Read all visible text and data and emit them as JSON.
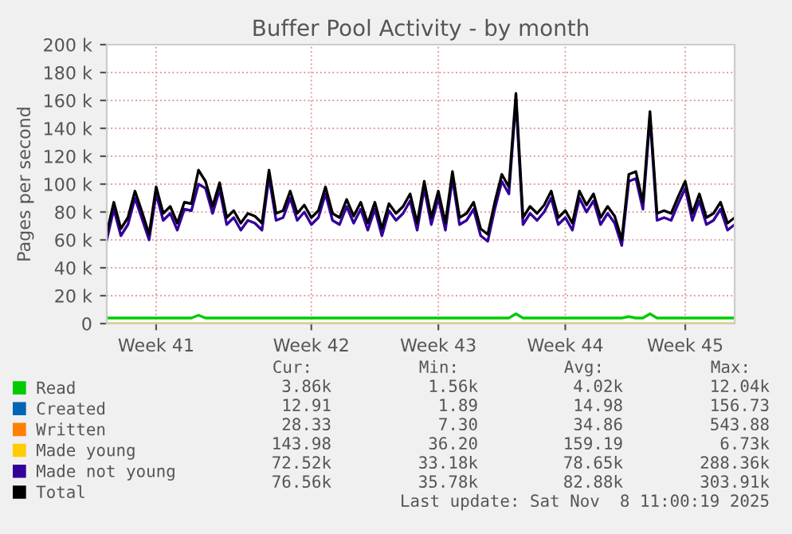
{
  "chart_data": {
    "type": "line",
    "title": "Buffer Pool Activity - by month",
    "ylabel": "Pages per second",
    "categories": [
      null,
      null,
      null,
      null,
      null,
      null,
      null,
      "Week 41",
      null,
      null,
      null,
      null,
      null,
      null,
      null,
      null,
      null,
      null,
      null,
      null,
      null,
      null,
      null,
      null,
      null,
      null,
      null,
      null,
      null,
      "Week 42",
      null,
      null,
      null,
      null,
      null,
      null,
      null,
      null,
      null,
      null,
      null,
      null,
      null,
      null,
      null,
      null,
      null,
      "Week 43",
      null,
      null,
      null,
      null,
      null,
      null,
      null,
      null,
      null,
      null,
      null,
      null,
      null,
      null,
      null,
      null,
      null,
      "Week 44",
      null,
      null,
      null,
      null,
      null,
      null,
      null,
      null,
      null,
      null,
      null,
      null,
      null,
      null,
      null,
      null,
      "Week 45",
      null,
      null,
      null,
      null,
      null,
      null,
      null
    ],
    "ylim": [
      0,
      200000
    ],
    "yticks": [
      0,
      {
        "value": 20000,
        "label": "20 k"
      },
      {
        "value": 40000,
        "label": "40 k"
      },
      {
        "value": 60000,
        "label": "60 k"
      },
      {
        "value": 80000,
        "label": "80 k"
      },
      {
        "value": 100000,
        "label": "100 k"
      },
      {
        "value": 120000,
        "label": "120 k"
      },
      {
        "value": 140000,
        "label": "140 k"
      },
      {
        "value": 160000,
        "label": "160 k"
      },
      {
        "value": 180000,
        "label": "180 k"
      },
      {
        "value": 200000,
        "label": "200 k"
      }
    ],
    "grid": true,
    "legend": "bottom",
    "series": [
      {
        "name": "Read",
        "color": "#00cc00",
        "values": [
          4000,
          4000,
          4000,
          4000,
          4000,
          4000,
          4000,
          4000,
          4000,
          4000,
          4000,
          4000,
          4000,
          6000,
          4000,
          4000,
          4000,
          4000,
          4000,
          4000,
          4000,
          4000,
          4000,
          4000,
          4000,
          4000,
          4000,
          4000,
          4000,
          4000,
          4000,
          4000,
          4000,
          4000,
          4000,
          4000,
          4000,
          4000,
          4000,
          4000,
          4000,
          4000,
          4000,
          4000,
          4000,
          4000,
          4000,
          4000,
          4000,
          4000,
          4000,
          4000,
          4000,
          4000,
          4000,
          4000,
          4000,
          4000,
          7000,
          4000,
          4000,
          4000,
          4000,
          4000,
          4000,
          4000,
          4000,
          4000,
          4000,
          4000,
          4000,
          4000,
          4000,
          4000,
          5000,
          4000,
          4000,
          7000,
          4000,
          4000,
          4000,
          4000,
          4000,
          4000,
          4000,
          4000,
          4000,
          4000,
          4000,
          4000
        ]
      },
      {
        "name": "Created",
        "color": "#0066b3",
        "values": [
          null,
          null,
          null,
          null,
          null,
          null,
          null,
          null,
          null,
          null,
          null,
          null,
          null,
          null,
          null,
          null,
          null,
          null,
          null,
          null,
          null,
          null,
          null,
          null,
          null,
          null,
          null,
          null,
          null,
          null,
          null,
          null,
          null,
          null,
          null,
          null,
          null,
          null,
          null,
          null,
          null,
          null,
          null,
          null,
          null,
          null,
          null,
          null,
          null,
          null,
          null,
          null,
          null,
          null,
          null,
          null,
          null,
          null,
          null,
          null,
          null,
          null,
          null,
          null,
          null,
          null,
          null,
          null,
          null,
          null,
          null,
          null,
          null,
          null,
          null,
          null,
          null,
          null,
          null,
          null,
          null,
          null,
          null,
          null,
          null,
          null,
          null,
          null,
          null,
          null
        ]
      },
      {
        "name": "Written",
        "color": "#ff8000",
        "values": [
          null,
          null,
          null,
          null,
          null,
          null,
          null,
          null,
          null,
          null,
          null,
          null,
          null,
          null,
          null,
          null,
          null,
          null,
          null,
          null,
          null,
          null,
          null,
          null,
          null,
          null,
          null,
          null,
          null,
          null,
          null,
          null,
          null,
          null,
          null,
          null,
          null,
          null,
          null,
          null,
          null,
          null,
          null,
          null,
          null,
          null,
          null,
          null,
          null,
          null,
          null,
          null,
          null,
          null,
          null,
          null,
          null,
          null,
          null,
          null,
          null,
          null,
          null,
          null,
          null,
          null,
          null,
          null,
          null,
          null,
          null,
          null,
          null,
          null,
          null,
          null,
          null,
          null,
          null,
          null,
          null,
          null,
          null,
          null,
          null,
          null,
          null,
          null,
          null,
          null
        ]
      },
      {
        "name": "Made young",
        "color": "#ffcc00",
        "values": [
          0,
          0,
          0,
          0,
          0,
          0,
          0,
          0,
          0,
          0,
          0,
          0,
          0,
          0,
          0,
          0,
          0,
          0,
          0,
          0,
          0,
          0,
          0,
          0,
          0,
          0,
          0,
          0,
          0,
          0,
          0,
          0,
          0,
          0,
          0,
          0,
          0,
          0,
          0,
          0,
          0,
          0,
          0,
          0,
          0,
          0,
          0,
          0,
          0,
          0,
          0,
          0,
          0,
          0,
          0,
          0,
          0,
          0,
          0,
          0,
          0,
          0,
          0,
          0,
          0,
          0,
          0,
          0,
          0,
          0,
          0,
          0,
          0,
          0,
          0,
          0,
          0,
          0,
          0,
          0,
          0,
          0,
          0,
          0,
          0,
          0,
          0,
          0,
          0,
          0
        ]
      },
      {
        "name": "Made not young",
        "color": "#330099",
        "values": [
          60000,
          82000,
          63000,
          71000,
          90000,
          75000,
          60000,
          93000,
          74000,
          79000,
          67000,
          82000,
          81000,
          100000,
          97000,
          79000,
          96000,
          71000,
          76000,
          67000,
          74000,
          72000,
          67000,
          105000,
          74000,
          76000,
          90000,
          74000,
          80000,
          71000,
          76000,
          93000,
          74000,
          71000,
          84000,
          72000,
          82000,
          67000,
          82000,
          63000,
          81000,
          74000,
          79000,
          88000,
          67000,
          97000,
          71000,
          90000,
          67000,
          104000,
          71000,
          74000,
          82000,
          63000,
          59000,
          82000,
          102000,
          93000,
          160000,
          71000,
          79000,
          74000,
          80000,
          90000,
          71000,
          76000,
          67000,
          90000,
          80000,
          88000,
          71000,
          79000,
          72000,
          56000,
          102000,
          104000,
          82000,
          148000,
          74000,
          76000,
          74000,
          86000,
          97000,
          74000,
          88000,
          71000,
          74000,
          82000,
          67000,
          71000
        ]
      },
      {
        "name": "Total",
        "color": "#000000",
        "values": [
          65000,
          87000,
          68000,
          76000,
          95000,
          80000,
          64000,
          98000,
          79000,
          84000,
          72000,
          87000,
          86000,
          110000,
          102000,
          84000,
          101000,
          76000,
          81000,
          72000,
          79000,
          77000,
          72000,
          110000,
          79000,
          81000,
          95000,
          79000,
          85000,
          76000,
          81000,
          98000,
          79000,
          76000,
          89000,
          77000,
          87000,
          72000,
          87000,
          68000,
          86000,
          79000,
          84000,
          93000,
          72000,
          102000,
          76000,
          95000,
          72000,
          109000,
          76000,
          79000,
          87000,
          68000,
          64000,
          87000,
          107000,
          98000,
          165000,
          76000,
          84000,
          79000,
          85000,
          95000,
          76000,
          81000,
          72000,
          95000,
          85000,
          93000,
          76000,
          84000,
          77000,
          60000,
          107000,
          109000,
          87000,
          152000,
          79000,
          81000,
          79000,
          91000,
          102000,
          79000,
          93000,
          76000,
          79000,
          87000,
          72000,
          76000
        ]
      }
    ],
    "annotations": [
      "Cur:",
      "Min:",
      "Avg:",
      "Max:",
      "3.86k",
      "1.56k",
      "4.02k",
      "12.04k",
      "12.91",
      "1.89",
      "14.98",
      "156.73",
      "28.33",
      "7.30",
      "34.86",
      "543.88",
      "143.98",
      "36.20",
      "159.19",
      "6.73k",
      "72.52k",
      "33.18k",
      "78.65k",
      "288.36k",
      "76.56k",
      "35.78k",
      "82.88k",
      "303.91k",
      "Last update: Sat Nov  8 11:00:19 2025"
    ]
  }
}
